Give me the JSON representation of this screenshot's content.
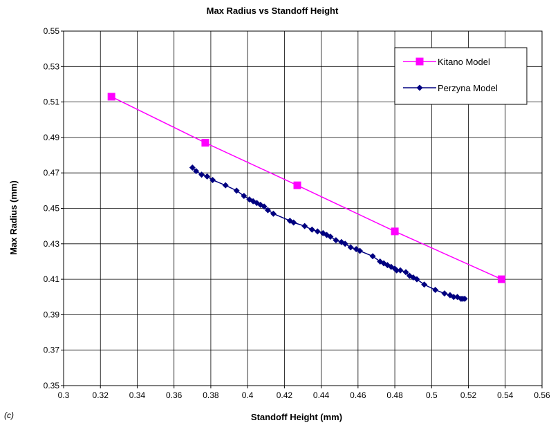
{
  "chart_data": {
    "type": "line",
    "title": "Max Radius vs Standoff Height",
    "xlabel": "Standoff Height (mm)",
    "ylabel": "Max Radius (mm)",
    "panel_label": "(c)",
    "xlim": [
      0.3,
      0.56
    ],
    "ylim": [
      0.35,
      0.55
    ],
    "xticks": [
      "0.3",
      "0.32",
      "0.34",
      "0.36",
      "0.38",
      "0.4",
      "0.42",
      "0.44",
      "0.46",
      "0.48",
      "0.5",
      "0.52",
      "0.54",
      "0.56"
    ],
    "yticks": [
      "0.35",
      "0.37",
      "0.39",
      "0.41",
      "0.43",
      "0.45",
      "0.47",
      "0.49",
      "0.51",
      "0.53",
      "0.55"
    ],
    "xtick_values": [
      0.3,
      0.32,
      0.34,
      0.36,
      0.38,
      0.4,
      0.42,
      0.44,
      0.46,
      0.48,
      0.5,
      0.52,
      0.54,
      0.56
    ],
    "ytick_values": [
      0.35,
      0.37,
      0.39,
      0.41,
      0.43,
      0.45,
      0.47,
      0.49,
      0.51,
      0.53,
      0.55
    ],
    "grid": true,
    "legend_position": "top-right",
    "series": [
      {
        "name": "Kitano Model",
        "color": "#ff00ff",
        "marker": "square",
        "x": [
          0.326,
          0.377,
          0.427,
          0.48,
          0.538
        ],
        "y": [
          0.513,
          0.487,
          0.463,
          0.437,
          0.41
        ]
      },
      {
        "name": "Perzyna Model",
        "color": "#000080",
        "marker": "diamond",
        "x": [
          0.37,
          0.372,
          0.375,
          0.378,
          0.381,
          0.388,
          0.394,
          0.398,
          0.401,
          0.403,
          0.405,
          0.407,
          0.409,
          0.411,
          0.414,
          0.423,
          0.425,
          0.431,
          0.435,
          0.438,
          0.441,
          0.443,
          0.445,
          0.448,
          0.451,
          0.453,
          0.456,
          0.459,
          0.461,
          0.468,
          0.472,
          0.474,
          0.476,
          0.478,
          0.48,
          0.481,
          0.483,
          0.486,
          0.488,
          0.49,
          0.492,
          0.496,
          0.502,
          0.507,
          0.51,
          0.512,
          0.514,
          0.516,
          0.517,
          0.518
        ],
        "y": [
          0.473,
          0.471,
          0.469,
          0.468,
          0.466,
          0.463,
          0.46,
          0.457,
          0.455,
          0.454,
          0.453,
          0.452,
          0.451,
          0.449,
          0.447,
          0.443,
          0.442,
          0.44,
          0.438,
          0.437,
          0.436,
          0.435,
          0.434,
          0.432,
          0.431,
          0.43,
          0.428,
          0.427,
          0.426,
          0.423,
          0.42,
          0.419,
          0.418,
          0.417,
          0.416,
          0.415,
          0.415,
          0.414,
          0.412,
          0.411,
          0.41,
          0.407,
          0.404,
          0.402,
          0.401,
          0.4,
          0.4,
          0.399,
          0.399,
          0.399
        ]
      }
    ]
  }
}
